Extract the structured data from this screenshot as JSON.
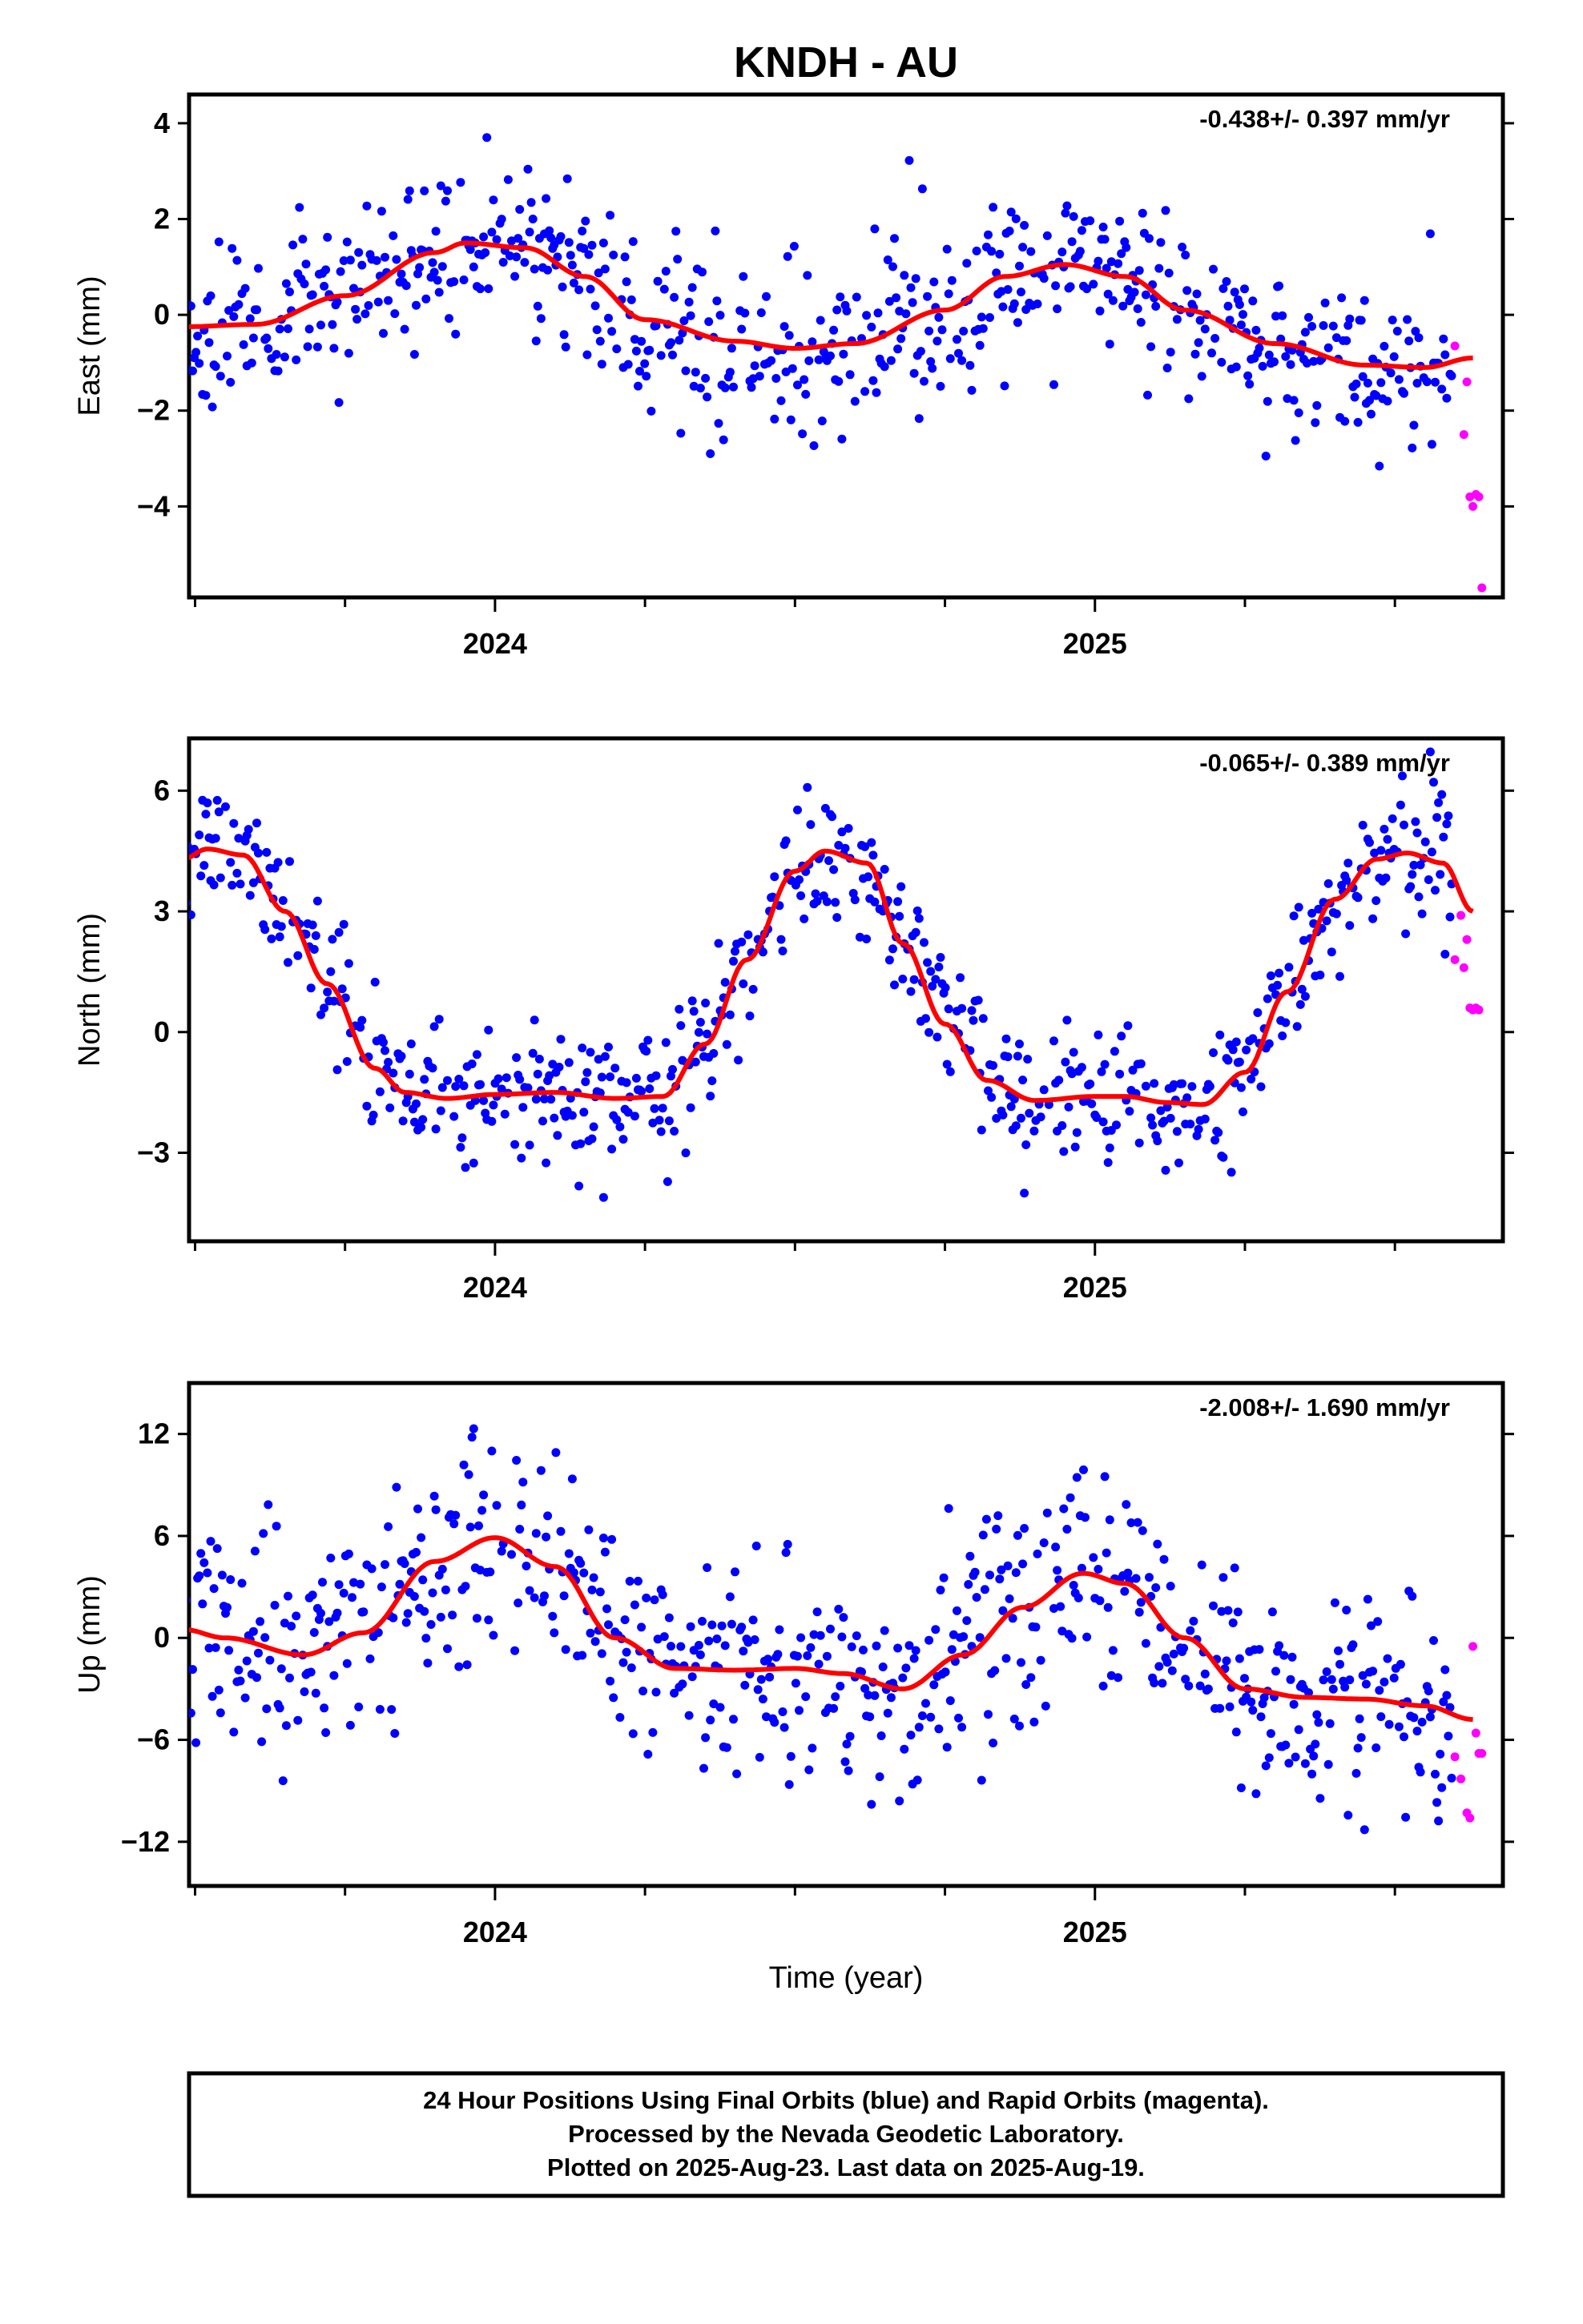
{
  "title": "KNDH - AU",
  "xlabel": "Time (year)",
  "colors": {
    "final": "#0000ff",
    "rapid": "#ff00ff",
    "fit": "#ff0000",
    "frame": "#000000"
  },
  "footer": {
    "line1": "24 Hour Positions Using Final Orbits (blue) and Rapid Orbits (magenta).",
    "line2": "Processed by the Nevada Geodetic Laboratory.",
    "line3": "Plotted on 2025-Aug-23. Last data on 2025-Aug-19."
  },
  "chart_data": [
    {
      "type": "scatter",
      "name": "east",
      "ylabel": "East (mm)",
      "rate": "-0.438+/- 0.397 mm/yr",
      "xlim": [
        2023.49,
        2025.68
      ],
      "ylim": [
        -5.9,
        4.6
      ],
      "yticks": [
        -4,
        -2,
        0,
        2,
        4
      ],
      "yticklabels": [
        "−4",
        "−2",
        "0",
        "2",
        "4"
      ],
      "xticks": [
        2024,
        2025
      ],
      "xticklabels": [
        "2024",
        "2025"
      ],
      "fit": {
        "x": [
          2023.48,
          2023.6,
          2023.75,
          2023.9,
          2023.95,
          2024.05,
          2024.15,
          2024.25,
          2024.4,
          2024.5,
          2024.6,
          2024.75,
          2024.85,
          2024.95,
          2025.05,
          2025.15,
          2025.3,
          2025.45,
          2025.55,
          2025.63
        ],
        "y": [
          -0.25,
          -0.2,
          0.4,
          1.3,
          1.5,
          1.4,
          0.8,
          -0.1,
          -0.55,
          -0.7,
          -0.6,
          0.1,
          0.8,
          1.05,
          0.8,
          0.1,
          -0.6,
          -1.05,
          -1.1,
          -0.9
        ]
      },
      "rapid": {
        "x": [
          2025.6,
          2025.615,
          2025.62,
          2025.625,
          2025.63,
          2025.635,
          2025.64,
          2025.645
        ],
        "y": [
          -0.65,
          -2.5,
          -1.4,
          -3.8,
          -4.0,
          -3.75,
          -3.8,
          -5.7
        ]
      },
      "noise": 0.9,
      "seed": 11
    },
    {
      "type": "scatter",
      "name": "north",
      "ylabel": "North (mm)",
      "rate": "-0.065+/- 0.389 mm/yr",
      "xlim": [
        2023.49,
        2025.68
      ],
      "ylim": [
        -5.2,
        7.3
      ],
      "yticks": [
        -3,
        0,
        3,
        6
      ],
      "yticklabels": [
        "−3",
        "0",
        "3",
        "6"
      ],
      "xticks": [
        2024,
        2025
      ],
      "xticklabels": [
        "2024",
        "2025"
      ],
      "fit": {
        "x": [
          2023.48,
          2023.52,
          2023.58,
          2023.65,
          2023.72,
          2023.8,
          2023.85,
          2023.92,
          2024.0,
          2024.1,
          2024.2,
          2024.28,
          2024.35,
          2024.42,
          2024.5,
          2024.55,
          2024.62,
          2024.68,
          2024.75,
          2024.82,
          2024.9,
          2025.0,
          2025.05,
          2025.12,
          2025.18,
          2025.25,
          2025.32,
          2025.4,
          2025.47,
          2025.52,
          2025.58,
          2025.63
        ],
        "y": [
          4.3,
          4.55,
          4.4,
          3.0,
          1.2,
          -0.9,
          -1.5,
          -1.65,
          -1.55,
          -1.5,
          -1.65,
          -1.6,
          -0.3,
          1.8,
          4.0,
          4.5,
          4.2,
          2.2,
          0.2,
          -1.2,
          -1.7,
          -1.6,
          -1.6,
          -1.75,
          -1.8,
          -1.0,
          1.0,
          3.3,
          4.3,
          4.45,
          4.2,
          3.0
        ]
      },
      "rapid": {
        "x": [
          2025.6,
          2025.61,
          2025.615,
          2025.62,
          2025.625,
          2025.63,
          2025.635,
          2025.64
        ],
        "y": [
          1.8,
          2.9,
          1.6,
          2.3,
          0.6,
          0.55,
          0.6,
          0.55
        ]
      },
      "noise": 0.85,
      "seed": 23
    },
    {
      "type": "scatter",
      "name": "up",
      "ylabel": "Up (mm)",
      "rate": "-2.008+/- 1.690 mm/yr",
      "xlim": [
        2023.49,
        2025.68
      ],
      "ylim": [
        -14.6,
        15.0
      ],
      "yticks": [
        -12,
        -6,
        0,
        6,
        12
      ],
      "yticklabels": [
        "−12",
        "−6",
        "0",
        "6",
        "12"
      ],
      "xticks": [
        2024,
        2025
      ],
      "xticklabels": [
        "2024",
        "2025"
      ],
      "fit": {
        "x": [
          2023.48,
          2023.55,
          2023.68,
          2023.78,
          2023.9,
          2024.0,
          2024.1,
          2024.2,
          2024.3,
          2024.4,
          2024.5,
          2024.58,
          2024.68,
          2024.78,
          2024.88,
          2024.98,
          2025.05,
          2025.15,
          2025.25,
          2025.35,
          2025.45,
          2025.55,
          2025.63
        ],
        "y": [
          0.5,
          0.0,
          -1.0,
          0.3,
          4.5,
          5.9,
          4.2,
          0.0,
          -1.8,
          -1.9,
          -1.8,
          -2.1,
          -3.0,
          -1.0,
          1.8,
          3.8,
          3.2,
          0.0,
          -3.0,
          -3.5,
          -3.6,
          -4.0,
          -4.8
        ]
      },
      "rapid": {
        "x": [
          2025.6,
          2025.61,
          2025.62,
          2025.625,
          2025.63,
          2025.635,
          2025.64,
          2025.645
        ],
        "y": [
          -7.0,
          -8.3,
          -10.3,
          -10.6,
          -0.5,
          -5.6,
          -6.8,
          -6.8
        ]
      },
      "noise": 3.2,
      "seed": 37
    }
  ]
}
